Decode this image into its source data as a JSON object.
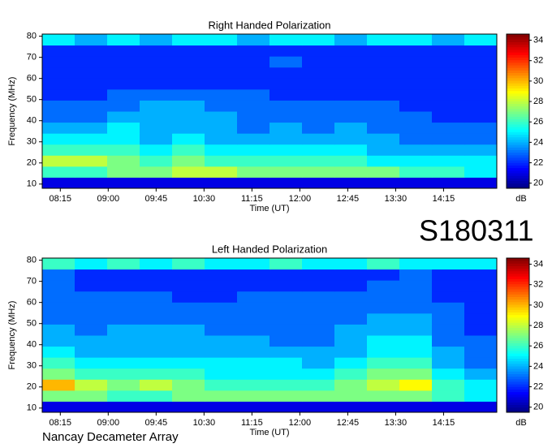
{
  "chart_data": [
    {
      "type": "heatmap",
      "title": "Right Handed Polarization",
      "xlabel": "Time (UT)",
      "ylabel": "Frequency (MHz)",
      "colorbar_label": "dB",
      "xlim": [
        478,
        905
      ],
      "xticks": [
        {
          "value": 495,
          "label": "08:15"
        },
        {
          "value": 540,
          "label": "09:00"
        },
        {
          "value": 585,
          "label": "09:45"
        },
        {
          "value": 630,
          "label": "10:30"
        },
        {
          "value": 675,
          "label": "11:15"
        },
        {
          "value": 720,
          "label": "12:00"
        },
        {
          "value": 765,
          "label": "12:45"
        },
        {
          "value": 810,
          "label": "13:30"
        },
        {
          "value": 855,
          "label": "14:15"
        }
      ],
      "ylim": [
        8,
        81
      ],
      "yticks": [
        10,
        20,
        30,
        40,
        50,
        60,
        70,
        80
      ],
      "clim": [
        19.5,
        34.6
      ],
      "cticks": [
        20,
        22,
        24,
        26,
        28,
        30,
        32,
        34
      ],
      "colormap": "jet",
      "z": [
        [
          21,
          21,
          21,
          21,
          21,
          21,
          21,
          21,
          21,
          21,
          21,
          21,
          21,
          21
        ],
        [
          26,
          26,
          27,
          27,
          28,
          28,
          27,
          27,
          27,
          27,
          27,
          26,
          26,
          25
        ],
        [
          28,
          28,
          27,
          26,
          27,
          26,
          26,
          26,
          26,
          26,
          25,
          25,
          25,
          25
        ],
        [
          26,
          26,
          26,
          25,
          26,
          25,
          25,
          25,
          25,
          25,
          24,
          24,
          24,
          24
        ],
        [
          25,
          25,
          25,
          24,
          25,
          24,
          24,
          24,
          24,
          24,
          24,
          23,
          23,
          23
        ],
        [
          24,
          24,
          25,
          24,
          24,
          24,
          23,
          24,
          23,
          24,
          23,
          23,
          23,
          23
        ],
        [
          23,
          23,
          24,
          24,
          24,
          24,
          23,
          23,
          23,
          23,
          23,
          23,
          22,
          22
        ],
        [
          23,
          23,
          23,
          24,
          24,
          23,
          23,
          23,
          23,
          23,
          23,
          22,
          22,
          22
        ],
        [
          22,
          22,
          23,
          23,
          23,
          23,
          23,
          22,
          22,
          22,
          22,
          22,
          22,
          22
        ],
        [
          22,
          22,
          22,
          22,
          22,
          22,
          22,
          22,
          22,
          22,
          22,
          22,
          22,
          22
        ],
        [
          22,
          22,
          22,
          22,
          22,
          22,
          22,
          22,
          22,
          22,
          22,
          22,
          22,
          22
        ],
        [
          22,
          22,
          22,
          22,
          22,
          22,
          22,
          23,
          22,
          22,
          22,
          22,
          22,
          22
        ],
        [
          22,
          22,
          22,
          22,
          22,
          22,
          22,
          22,
          22,
          22,
          22,
          22,
          22,
          22
        ],
        [
          25,
          24,
          25,
          24,
          25,
          25,
          24,
          25,
          25,
          24,
          25,
          25,
          24,
          25
        ]
      ]
    },
    {
      "type": "heatmap",
      "title": "Left Handed Polarization",
      "xlabel": "Time (UT)",
      "ylabel": "Frequency (MHz)",
      "colorbar_label": "dB",
      "xlim": [
        478,
        905
      ],
      "xticks": [
        {
          "value": 495,
          "label": "08:15"
        },
        {
          "value": 540,
          "label": "09:00"
        },
        {
          "value": 585,
          "label": "09:45"
        },
        {
          "value": 630,
          "label": "10:30"
        },
        {
          "value": 675,
          "label": "11:15"
        },
        {
          "value": 720,
          "label": "12:00"
        },
        {
          "value": 765,
          "label": "12:45"
        },
        {
          "value": 810,
          "label": "13:30"
        },
        {
          "value": 855,
          "label": "14:15"
        }
      ],
      "ylim": [
        8,
        81
      ],
      "yticks": [
        10,
        20,
        30,
        40,
        50,
        60,
        70,
        80
      ],
      "clim": [
        19.5,
        34.6
      ],
      "cticks": [
        20,
        22,
        24,
        26,
        28,
        30,
        32,
        34
      ],
      "colormap": "jet",
      "z": [
        [
          21,
          21,
          21,
          21,
          21,
          21,
          21,
          21,
          21,
          21,
          21,
          21,
          21,
          21
        ],
        [
          27,
          27,
          26,
          26,
          27,
          27,
          27,
          27,
          27,
          27,
          27,
          27,
          26,
          25
        ],
        [
          30,
          28,
          27,
          28,
          27,
          26,
          26,
          26,
          26,
          27,
          28,
          29,
          26,
          25
        ],
        [
          27,
          26,
          26,
          26,
          26,
          25,
          25,
          25,
          25,
          26,
          27,
          27,
          25,
          24
        ],
        [
          26,
          25,
          25,
          25,
          25,
          25,
          25,
          25,
          24,
          25,
          26,
          26,
          24,
          23
        ],
        [
          25,
          24,
          24,
          24,
          24,
          24,
          24,
          24,
          24,
          24,
          25,
          25,
          24,
          23
        ],
        [
          24,
          24,
          24,
          24,
          24,
          24,
          24,
          23,
          23,
          24,
          25,
          25,
          23,
          23
        ],
        [
          24,
          23,
          24,
          24,
          24,
          23,
          23,
          23,
          23,
          24,
          24,
          24,
          23,
          22
        ],
        [
          23,
          23,
          23,
          23,
          23,
          23,
          23,
          23,
          23,
          23,
          24,
          24,
          23,
          22
        ],
        [
          23,
          23,
          23,
          23,
          23,
          23,
          23,
          23,
          23,
          23,
          23,
          23,
          23,
          22
        ],
        [
          23,
          23,
          23,
          23,
          22,
          22,
          23,
          23,
          23,
          23,
          23,
          23,
          22,
          22
        ],
        [
          23,
          22,
          22,
          22,
          22,
          22,
          22,
          22,
          22,
          22,
          23,
          23,
          22,
          22
        ],
        [
          23,
          22,
          22,
          22,
          22,
          22,
          22,
          22,
          22,
          22,
          22,
          23,
          22,
          22
        ],
        [
          26,
          25,
          26,
          25,
          26,
          25,
          25,
          26,
          25,
          25,
          26,
          25,
          25,
          25
        ]
      ]
    }
  ],
  "label": "S180311",
  "footer": "Nancay Decameter Array"
}
